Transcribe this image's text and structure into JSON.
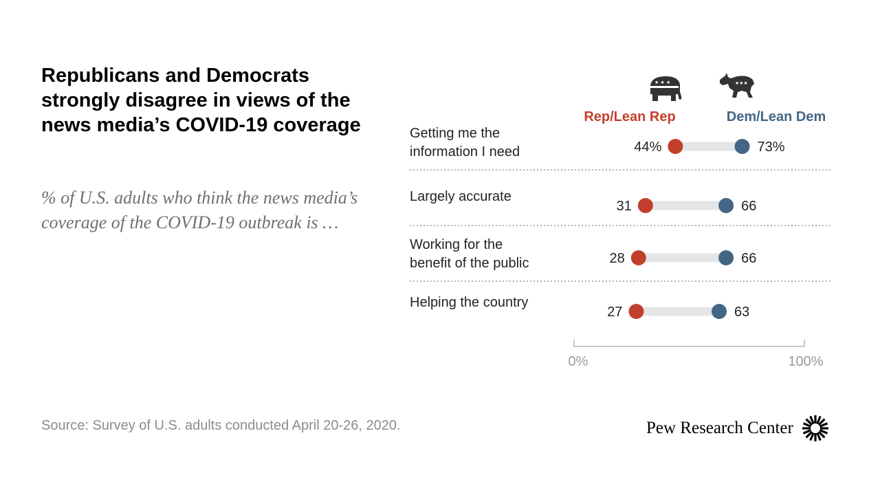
{
  "title": "Republicans and Democrats strongly disagree in views of the news media’s COVID-19 coverage",
  "subtitle": "% of U.S. adults who think the news media’s coverage of the COVID-19 outbreak is …",
  "source": "Source: Survey of U.S. adults conducted April 20-26, 2020.",
  "brand": "Pew Research Center",
  "colors": {
    "rep": "#c2402b",
    "dem": "#436685",
    "bar": "#e4e5e6",
    "divider": "#9a9a9a",
    "axis": "#b5b5b5",
    "axis_text": "#9a9a9a"
  },
  "icons": {
    "rep": "elephant-icon",
    "dem": "donkey-icon",
    "brand": "pew-sunburst-icon"
  },
  "chart_data": {
    "type": "dot",
    "categories": [
      [
        "Getting me the",
        "information I need"
      ],
      [
        "Largely accurate"
      ],
      [
        "Working for the",
        "benefit of the public"
      ],
      [
        "Helping the country"
      ]
    ],
    "series": [
      {
        "name": "Rep/Lean Rep",
        "values": [
          44,
          31,
          28,
          27
        ],
        "labels": [
          "44%",
          "31",
          "28",
          "27"
        ]
      },
      {
        "name": "Dem/Lean Dem",
        "values": [
          73,
          66,
          66,
          63
        ],
        "labels": [
          "73%",
          "66",
          "66",
          "63"
        ]
      }
    ],
    "xlim": [
      0,
      100
    ],
    "xticklabels": [
      "0%",
      "100%"
    ]
  }
}
